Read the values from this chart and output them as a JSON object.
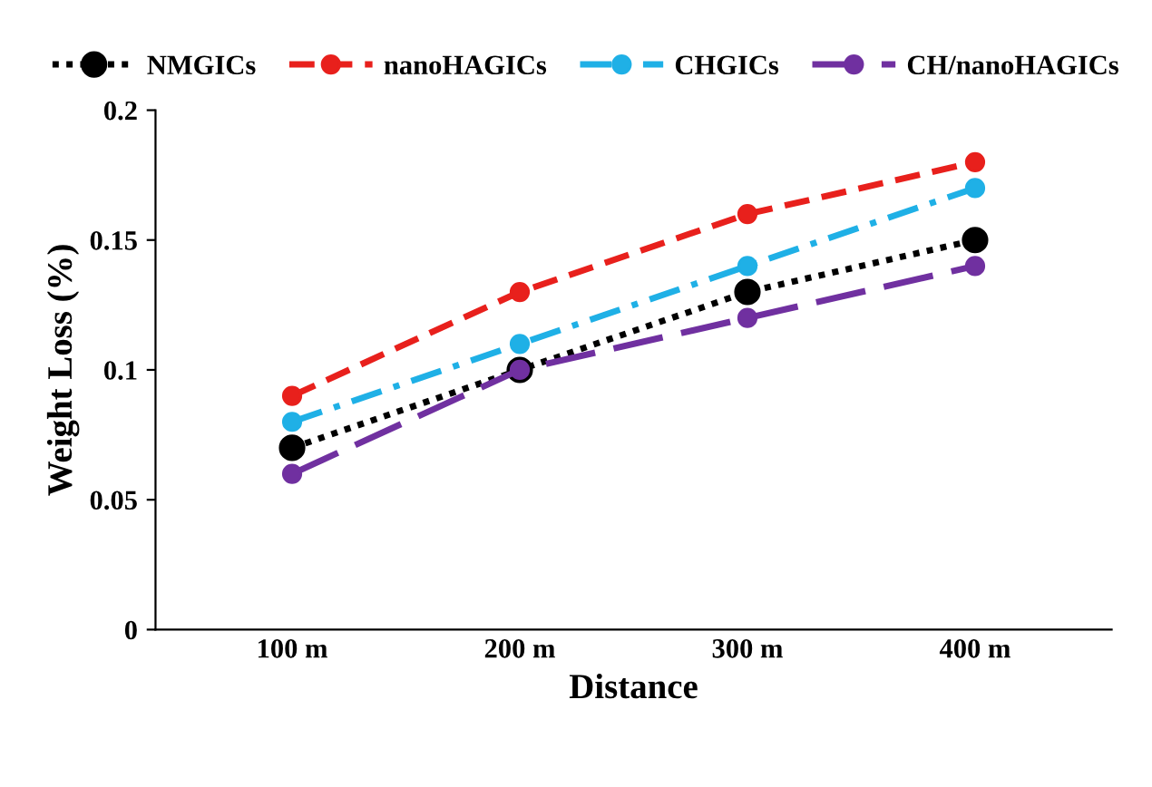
{
  "chart_data": {
    "type": "line",
    "xlabel": "Distance",
    "ylabel": "Weight Loss (%)",
    "categories": [
      "100 m",
      "200 m",
      "300 m",
      "400 m"
    ],
    "series": [
      {
        "name": "NMGICs",
        "color": "#000000",
        "line_style": "dotted",
        "values": [
          0.07,
          0.1,
          0.13,
          0.15
        ]
      },
      {
        "name": "nanoHAGICs",
        "color": "#e8201c",
        "line_style": "dashed",
        "values": [
          0.09,
          0.13,
          0.16,
          0.18
        ]
      },
      {
        "name": "CHGICs",
        "color": "#1fb0e6",
        "line_style": "dashdot",
        "values": [
          0.08,
          0.11,
          0.14,
          0.17
        ]
      },
      {
        "name": "CH/nanoHAGICs",
        "color": "#7030a0",
        "line_style": "longdash",
        "values": [
          0.06,
          0.1,
          0.12,
          0.14
        ]
      }
    ],
    "ylim": [
      0,
      0.2
    ],
    "yticks": [
      0,
      0.05,
      0.1,
      0.15,
      0.2
    ],
    "marker": "circle",
    "legend": "top",
    "grid": false
  }
}
